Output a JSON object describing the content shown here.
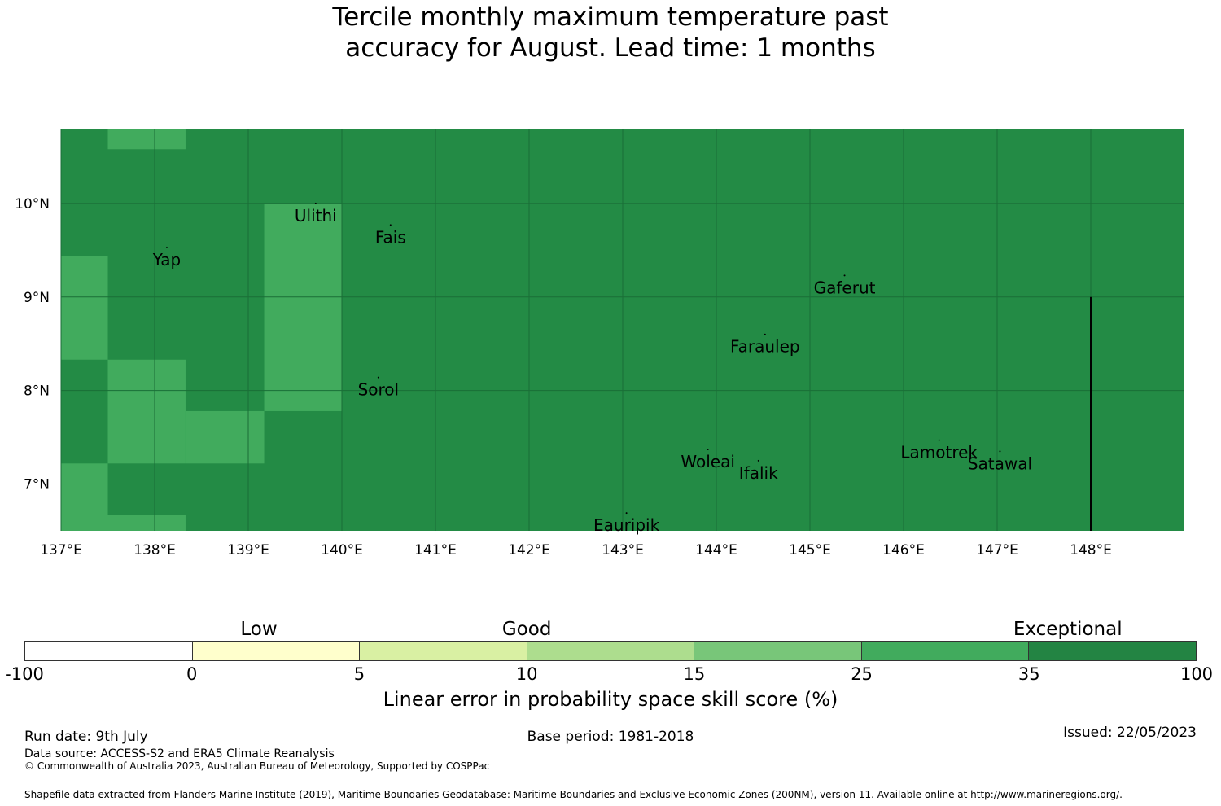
{
  "title_line1": "Tercile monthly maximum temperature past",
  "title_line2": "accuracy for August. Lead time: 1 months",
  "map": {
    "lon_range": [
      137.0,
      149.0
    ],
    "lat_range": [
      6.5,
      10.8
    ],
    "x_ticks": [
      "137°E",
      "138°E",
      "139°E",
      "140°E",
      "141°E",
      "142°E",
      "143°E",
      "144°E",
      "145°E",
      "146°E",
      "147°E",
      "148°E"
    ],
    "y_ticks": [
      "10°N",
      "9°N",
      "8°N",
      "7°N"
    ],
    "dark_color": "#238b45",
    "light_color": "#41ab5d",
    "light_cells": [
      {
        "lon": [
          137.5,
          138.33
        ],
        "lat": [
          10.58,
          10.8
        ]
      },
      {
        "lon": [
          137.0,
          137.5
        ],
        "lat": [
          8.33,
          9.44
        ]
      },
      {
        "lon": [
          137.5,
          138.33
        ],
        "lat": [
          7.22,
          8.33
        ]
      },
      {
        "lon": [
          138.33,
          139.17
        ],
        "lat": [
          7.22,
          7.78
        ]
      },
      {
        "lon": [
          139.17,
          140.0
        ],
        "lat": [
          7.78,
          10.0
        ]
      },
      {
        "lon": [
          137.0,
          137.5
        ],
        "lat": [
          6.5,
          7.22
        ]
      },
      {
        "lon": [
          137.5,
          138.33
        ],
        "lat": [
          6.5,
          6.67
        ]
      }
    ],
    "places": [
      {
        "name": "Ulithi",
        "lon": 139.72,
        "lat": 10.0
      },
      {
        "name": "Fais",
        "lon": 140.52,
        "lat": 9.77
      },
      {
        "name": "Yap",
        "lon": 138.13,
        "lat": 9.53
      },
      {
        "name": "Gaferut",
        "lon": 145.37,
        "lat": 9.23
      },
      {
        "name": "Faraulep",
        "lon": 144.52,
        "lat": 8.6
      },
      {
        "name": "Sorol",
        "lon": 140.39,
        "lat": 8.14
      },
      {
        "name": "Woleai",
        "lon": 143.91,
        "lat": 7.37
      },
      {
        "name": "Ifalik",
        "lon": 144.45,
        "lat": 7.25
      },
      {
        "name": "Lamotrek",
        "lon": 146.38,
        "lat": 7.47
      },
      {
        "name": "Satawal",
        "lon": 147.03,
        "lat": 7.35
      },
      {
        "name": "Eauripik",
        "lon": 143.04,
        "lat": 6.69
      }
    ],
    "boundary_line": {
      "lon": 148.0,
      "lat": [
        6.5,
        9.0
      ]
    }
  },
  "colorbar": {
    "categories": [
      {
        "label": "Low",
        "value": 2
      },
      {
        "label": "Good",
        "value": 10
      },
      {
        "label": "Exceptional",
        "value": 50
      }
    ],
    "ticks": [
      "-100",
      "0",
      "5",
      "10",
      "15",
      "25",
      "35",
      "100"
    ],
    "colors": [
      "#ffffff",
      "#ffffcc",
      "#d9f0a3",
      "#addd8e",
      "#78c679",
      "#41ab5d",
      "#238443"
    ],
    "label": "Linear error in probability space skill score (%)"
  },
  "footer": {
    "run_date": "Run date: 9th July",
    "base_period": "Base period: 1981-2018",
    "issued": "Issued: 22/05/2023",
    "data_source": "Data source: ACCESS-S2 and ERA5 Climate Reanalysis",
    "copyright": "© Commonwealth of Australia 2023, Australian Bureau of Meteorology, Supported by COSPPac",
    "shapefile": "Shapefile data extracted from Flanders Marine Institute (2019), Maritime Boundaries Geodatabase: Maritime Boundaries and Exclusive Economic Zones (200NM), version 11. Available online at http://www.marineregions.org/."
  }
}
